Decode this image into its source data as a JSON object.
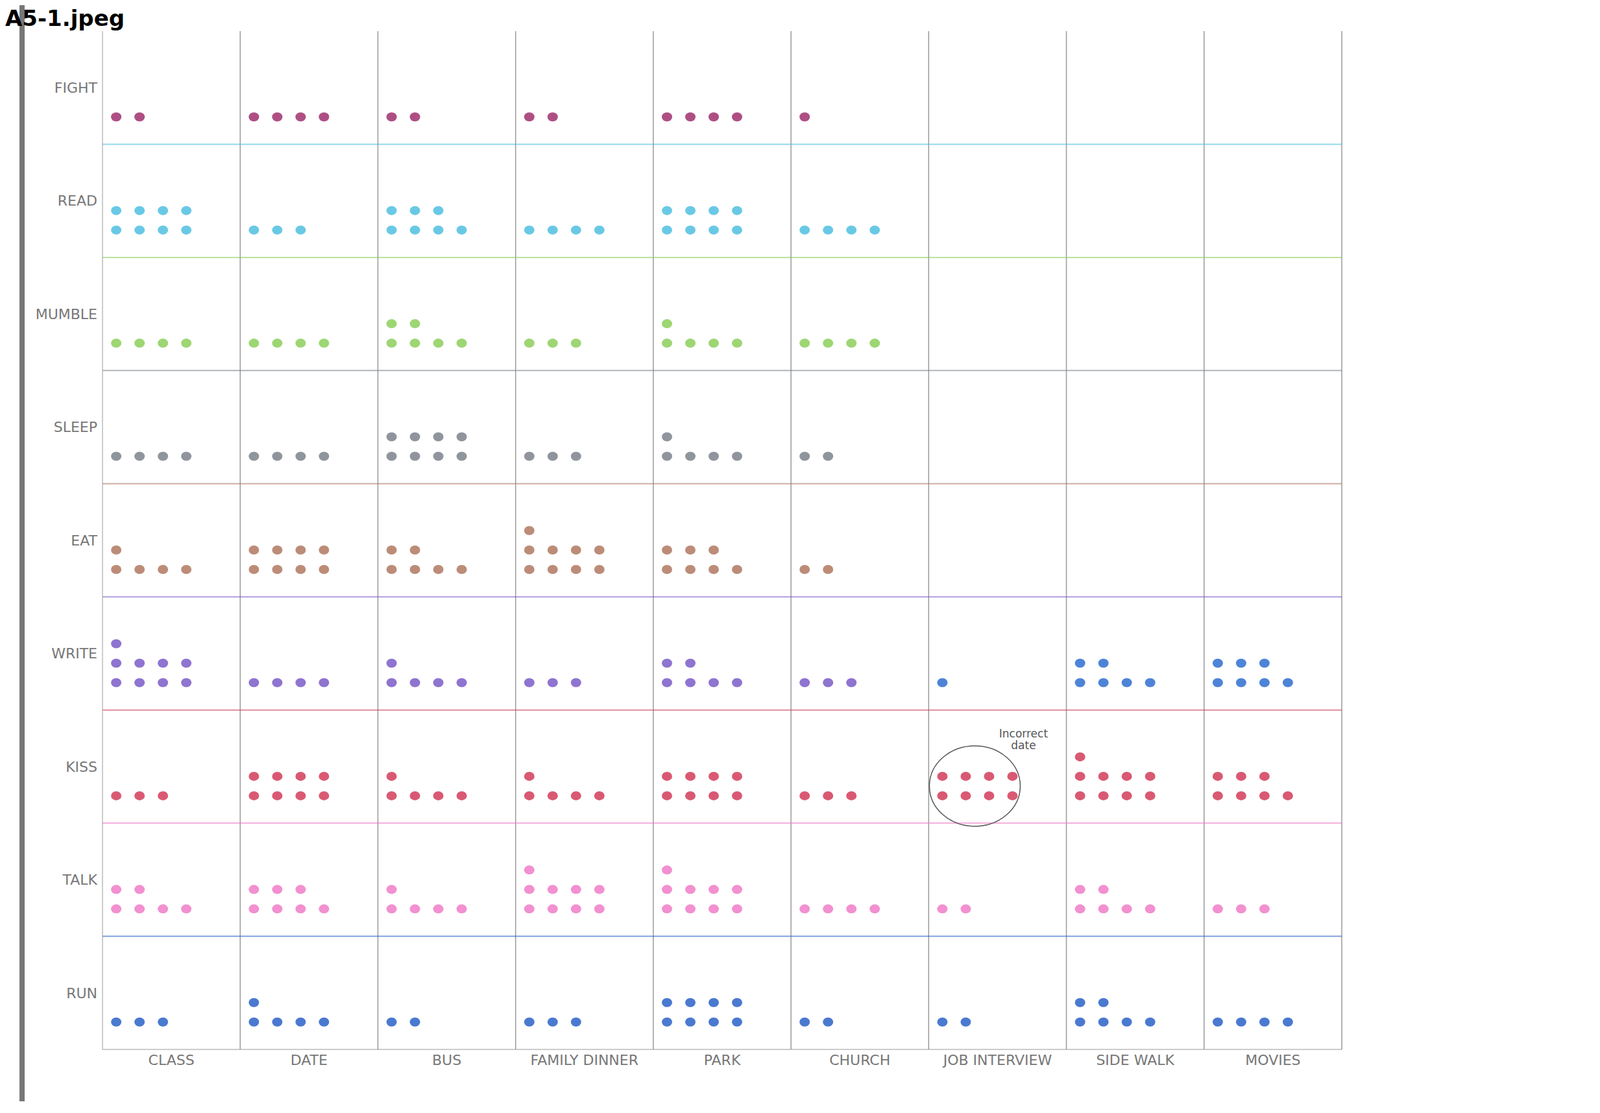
{
  "chart_data": {
    "type": "dot_matrix",
    "title": "A5-1.jpeg",
    "categories": [
      "CLASS",
      "DATE",
      "BUS",
      "FAMILY DINNER",
      "PARK",
      "CHURCH",
      "JOB INTERVIEW",
      "SIDE WALK",
      "MOVIES"
    ],
    "series": [
      {
        "name": "FIGHT",
        "color": "#a0306f",
        "values": [
          2,
          4,
          2,
          2,
          4,
          1,
          0,
          0,
          0
        ]
      },
      {
        "name": "READ",
        "color": "#4fbfe0",
        "values": [
          8,
          3,
          7,
          4,
          8,
          4,
          0,
          0,
          0
        ]
      },
      {
        "name": "MUMBLE",
        "color": "#8ccf5a",
        "values": [
          4,
          4,
          6,
          3,
          5,
          4,
          0,
          0,
          0
        ]
      },
      {
        "name": "SLEEP",
        "color": "#7c838c",
        "values": [
          4,
          4,
          8,
          3,
          5,
          2,
          0,
          0,
          0
        ]
      },
      {
        "name": "EAT",
        "color": "#b07860",
        "values": [
          5,
          8,
          6,
          9,
          7,
          2,
          0,
          0,
          0
        ]
      },
      {
        "name": "WRITE",
        "color": "#7b5cc8",
        "colors": [
          "#7b5cc8",
          "#7b5cc8",
          "#7b5cc8",
          "#7b5cc8",
          "#7b5cc8",
          "#7b5cc8",
          "#2f6fd0",
          "#2f6fd0",
          "#2f6fd0"
        ],
        "values": [
          9,
          4,
          5,
          3,
          6,
          3,
          1,
          6,
          7
        ]
      },
      {
        "name": "KISS",
        "color": "#d23c5a",
        "values": [
          3,
          8,
          5,
          5,
          8,
          3,
          8,
          9,
          7
        ]
      },
      {
        "name": "TALK",
        "color": "#f07cc8",
        "values": [
          6,
          7,
          5,
          9,
          9,
          4,
          2,
          6,
          3
        ]
      },
      {
        "name": "RUN",
        "color": "#2a62c8",
        "values": [
          3,
          5,
          2,
          3,
          8,
          2,
          2,
          6,
          4
        ]
      }
    ],
    "annotations": [
      {
        "text": "Incorrect date",
        "category": "JOB INTERVIEW",
        "series": "KISS"
      }
    ],
    "grid": true
  }
}
